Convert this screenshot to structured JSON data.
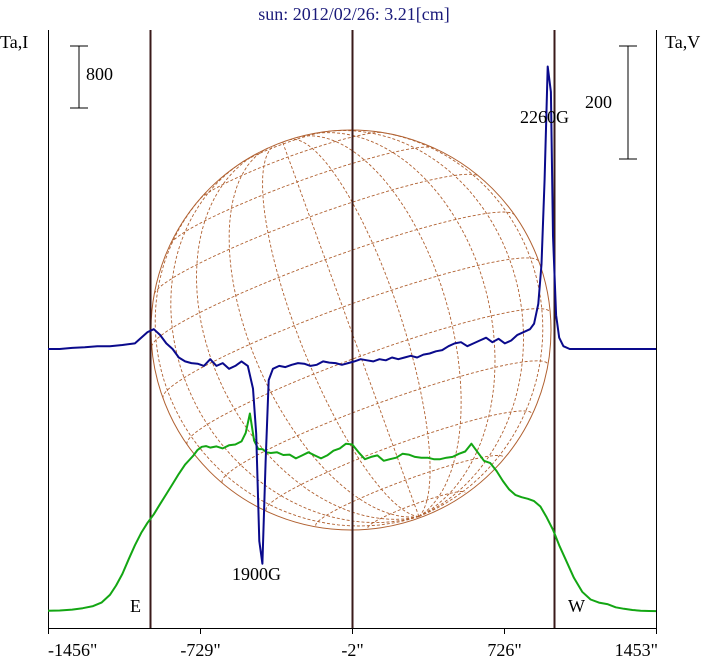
{
  "chart_data": {
    "type": "line",
    "title": "sun: 2012/02/26: 3.21[cm]",
    "left_axis_label": "Ta,I",
    "right_axis_label": "Ta,V",
    "x_ticks": [
      "-1456\"",
      "-729\"",
      "-2\"",
      "726\"",
      "1453\""
    ],
    "x_tick_values": [
      -1456,
      -729,
      -2,
      726,
      1453
    ],
    "xlim": [
      -1456,
      1453
    ],
    "limb_labels": {
      "east": "E",
      "west": "W"
    },
    "limb_positions": [
      -970,
      967
    ],
    "scale_bars": [
      {
        "label": "800",
        "axis": "left"
      },
      {
        "label": "200",
        "axis": "right"
      }
    ],
    "annotations": [
      {
        "text": "1900G",
        "x": -430
      },
      {
        "text": "2260G",
        "x": 955
      }
    ],
    "colors": {
      "stokes_i": "#13a613",
      "stokes_v": "#0a0a8c",
      "limb_lines": "#3a1a1a",
      "disk": "#b06030",
      "title": "#1a1a7a"
    },
    "series": [
      {
        "name": "I",
        "x": [
          -1456,
          -1400,
          -1340,
          -1290,
          -1240,
          -1200,
          -1160,
          -1130,
          -1100,
          -1070,
          -1040,
          -1010,
          -980,
          -950,
          -920,
          -890,
          -860,
          -830,
          -800,
          -780,
          -760,
          -740,
          -720,
          -700,
          -680,
          -650,
          -620,
          -590,
          -560,
          -530,
          -510,
          -490,
          -470,
          -450,
          -430,
          -410,
          -390,
          -360,
          -330,
          -300,
          -270,
          -240,
          -210,
          -180,
          -150,
          -120,
          -90,
          -60,
          -30,
          0,
          30,
          60,
          90,
          120,
          150,
          180,
          210,
          240,
          270,
          300,
          330,
          360,
          390,
          420,
          450,
          480,
          510,
          540,
          570,
          600,
          630,
          660,
          690,
          720,
          750,
          780,
          810,
          840,
          870,
          900,
          930,
          960,
          990,
          1020,
          1060,
          1100,
          1140,
          1180,
          1220,
          1260,
          1300,
          1340,
          1380,
          1420,
          1453
        ],
        "y": [
          54,
          58,
          70,
          88,
          115,
          160,
          260,
          380,
          530,
          720,
          900,
          1060,
          1190,
          1300,
          1430,
          1560,
          1690,
          1820,
          1940,
          2000,
          2060,
          2130,
          2170,
          2180,
          2160,
          2175,
          2150,
          2190,
          2200,
          2240,
          2350,
          2600,
          2250,
          2140,
          2140,
          2100,
          2090,
          2100,
          2065,
          2070,
          2020,
          2060,
          2100,
          2060,
          2020,
          2060,
          2120,
          2150,
          2210,
          2200,
          2100,
          2010,
          2040,
          2060,
          1990,
          2010,
          2030,
          2080,
          2070,
          2040,
          2030,
          2030,
          2010,
          2010,
          2030,
          2040,
          2080,
          2110,
          2210,
          2100,
          1990,
          1960,
          1860,
          1730,
          1620,
          1550,
          1520,
          1500,
          1470,
          1400,
          1260,
          1100,
          900,
          720,
          480,
          300,
          200,
          160,
          140,
          100,
          80,
          65,
          55,
          52,
          50
        ]
      },
      {
        "name": "V",
        "x": [
          -1456,
          -1400,
          -1340,
          -1280,
          -1220,
          -1160,
          -1100,
          -1040,
          -980,
          -950,
          -920,
          -890,
          -860,
          -830,
          -800,
          -770,
          -740,
          -710,
          -680,
          -650,
          -620,
          -590,
          -560,
          -530,
          -500,
          -475,
          -460,
          -445,
          -430,
          -415,
          -400,
          -380,
          -350,
          -320,
          -290,
          -260,
          -230,
          -200,
          -170,
          -140,
          -110,
          -80,
          -50,
          -20,
          10,
          40,
          70,
          100,
          130,
          160,
          190,
          220,
          250,
          280,
          310,
          340,
          370,
          400,
          430,
          460,
          490,
          520,
          550,
          580,
          610,
          640,
          670,
          700,
          730,
          760,
          790,
          820,
          850,
          870,
          890,
          905,
          920,
          935,
          950,
          960,
          975,
          990,
          1010,
          1040,
          1080,
          1120,
          1160,
          1200,
          1240,
          1280,
          1320,
          1360,
          1400,
          1453
        ],
        "y": [
          0,
          0,
          2,
          3,
          5,
          5,
          7,
          10,
          30,
          35,
          25,
          10,
          0,
          -15,
          -22,
          -25,
          -26,
          -30,
          -18,
          -30,
          -25,
          -35,
          -30,
          -22,
          -30,
          -70,
          -150,
          -340,
          -380,
          -200,
          -55,
          -35,
          -30,
          -32,
          -28,
          -25,
          -26,
          -30,
          -28,
          -22,
          -24,
          -25,
          -28,
          -25,
          -22,
          -18,
          -20,
          -22,
          -18,
          -20,
          -15,
          -18,
          -15,
          -12,
          -15,
          -10,
          -8,
          -4,
          -2,
          5,
          10,
          12,
          5,
          10,
          15,
          20,
          12,
          18,
          10,
          15,
          25,
          30,
          35,
          45,
          80,
          150,
          300,
          500,
          455,
          200,
          60,
          20,
          5,
          0,
          0,
          0,
          0,
          0,
          0,
          0,
          0,
          0,
          0,
          0
        ]
      }
    ]
  }
}
